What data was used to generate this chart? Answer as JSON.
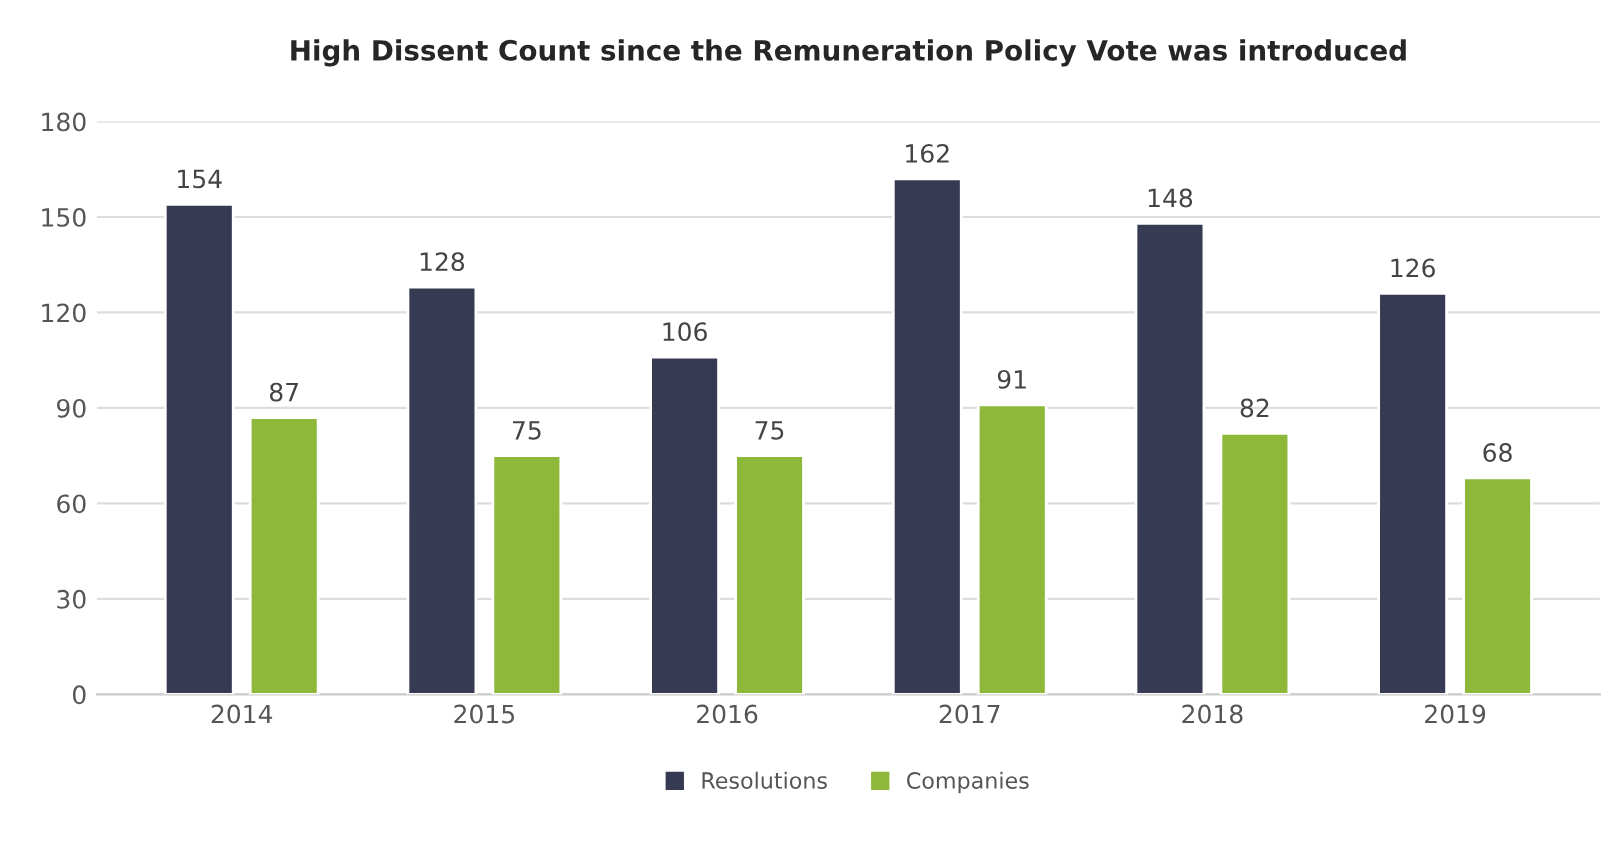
{
  "chart_data": {
    "type": "bar",
    "title": "High Dissent Count since the Remuneration Policy Vote was introduced",
    "categories": [
      "2014",
      "2015",
      "2016",
      "2017",
      "2018",
      "2019"
    ],
    "series": [
      {
        "name": "Resolutions",
        "color": "#363a52",
        "values": [
          154,
          128,
          106,
          162,
          148,
          126
        ]
      },
      {
        "name": "Companies",
        "color": "#8db83a",
        "values": [
          87,
          75,
          75,
          91,
          82,
          68
        ]
      }
    ],
    "ylim": [
      0,
      180
    ],
    "yticks": [
      0,
      30,
      60,
      90,
      120,
      150,
      180
    ],
    "grid": "y",
    "legend": "bottom",
    "data_labels": true
  }
}
